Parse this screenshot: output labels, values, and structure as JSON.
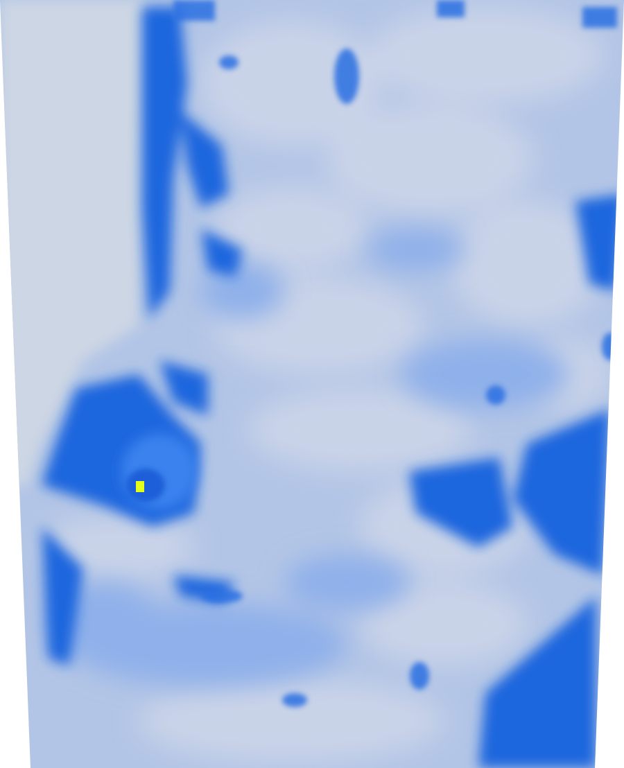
{
  "render": {
    "background_color": "#ffffff",
    "colormap": {
      "low": "#ccd6e4",
      "mid_low": "#a8bde6",
      "mid": "#6f9ae6",
      "mid_high": "#2f6fe0",
      "high": "#1660dd",
      "peak": "#e4ff1a"
    },
    "hotspot_color": "#e4ff1a"
  }
}
